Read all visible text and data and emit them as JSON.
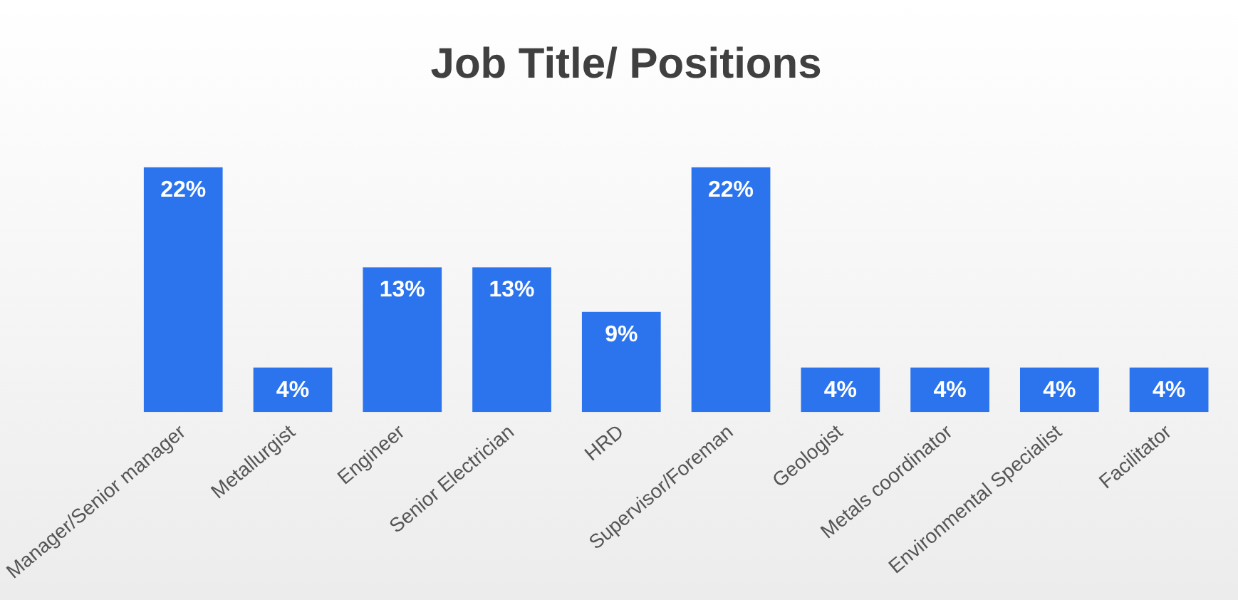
{
  "chart_data": {
    "type": "bar",
    "title": "Job Title/ Positions",
    "categories": [
      "Manager/Senior manager",
      "Metallurgist",
      "Engineer",
      "Senior Electrician",
      "HRD",
      "Supervisor/Foreman",
      "Geologist",
      "Metals coordinator",
      "Environmental Specialist",
      "Facilitator"
    ],
    "values": [
      22,
      4,
      13,
      13,
      9,
      22,
      4,
      4,
      4,
      4
    ],
    "value_labels": [
      "22%",
      "4%",
      "13%",
      "13%",
      "9%",
      "22%",
      "4%",
      "4%",
      "4%",
      "4%"
    ],
    "color": "#2b74ee",
    "grid": false,
    "legend": false
  }
}
